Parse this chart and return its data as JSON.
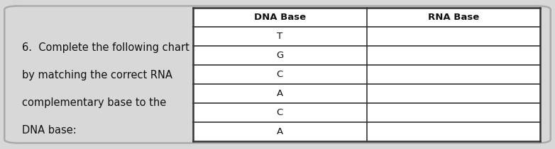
{
  "question_line1": "6.  Complete the following chart",
  "question_line2": "by matching the correct RNA",
  "question_line3": "complementary base to the",
  "question_line4": "DNA base:",
  "col_headers": [
    "DNA Base",
    "RNA Base"
  ],
  "dna_bases": [
    "T",
    "G",
    "C",
    "A",
    "C",
    "A"
  ],
  "background_color": "#d8d8d8",
  "table_bg": "#ffffff",
  "border_color": "#333333",
  "text_color": "#111111",
  "header_fontsize": 9.5,
  "cell_fontsize": 9.5,
  "question_fontsize": 10.5,
  "fig_width": 7.82,
  "fig_height": 2.11,
  "dpi": 100
}
